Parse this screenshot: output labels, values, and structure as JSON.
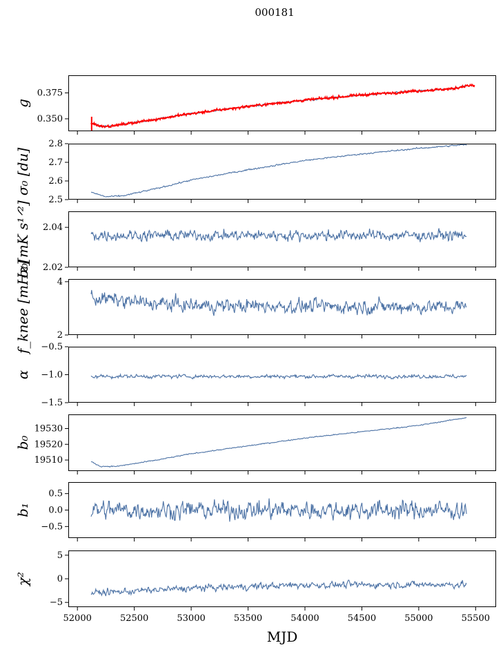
{
  "chart_data": {
    "type": "line",
    "title": "000181",
    "xlabel": "MJD",
    "x_range": [
      51920,
      55680
    ],
    "x_ticks": [
      52000,
      52500,
      53000,
      53500,
      54000,
      54500,
      55000,
      55500
    ],
    "x_tick_labels": [
      "52000",
      "52500",
      "53000",
      "53500",
      "54000",
      "54500",
      "55000",
      "55500"
    ],
    "data_x_range": [
      52120,
      55420
    ],
    "colors": {
      "series": "#4c72a5",
      "overlay": "#ff0000"
    },
    "panels": [
      {
        "id": "g",
        "ylabel": "g",
        "ylim": [
          0.338,
          0.392
        ],
        "yticks": [
          0.35,
          0.375
        ],
        "ytick_labels": [
          "0.350",
          "0.375"
        ],
        "trend": [
          [
            52120,
            0.346
          ],
          [
            52200,
            0.343
          ],
          [
            52300,
            0.343
          ],
          [
            52600,
            0.348
          ],
          [
            53000,
            0.355
          ],
          [
            53500,
            0.362
          ],
          [
            54000,
            0.368
          ],
          [
            54500,
            0.373
          ],
          [
            55000,
            0.377
          ],
          [
            55300,
            0.379
          ],
          [
            55420,
            0.382
          ]
        ],
        "noise": 0.0008,
        "overlay": {
          "color": "#ff0000",
          "x_end": 55490,
          "noise": 0.0012
        }
      },
      {
        "id": "sigma0-du",
        "ylabel": "σ₀ [du]",
        "ylim": [
          2.5,
          2.8
        ],
        "yticks": [
          2.5,
          2.6,
          2.7,
          2.8
        ],
        "ytick_labels": [
          "2.5",
          "2.6",
          "2.7",
          "2.8"
        ],
        "trend": [
          [
            52120,
            2.54
          ],
          [
            52250,
            2.515
          ],
          [
            52400,
            2.52
          ],
          [
            52700,
            2.56
          ],
          [
            53000,
            2.605
          ],
          [
            53500,
            2.66
          ],
          [
            54000,
            2.71
          ],
          [
            54500,
            2.745
          ],
          [
            55000,
            2.775
          ],
          [
            55420,
            2.795
          ]
        ],
        "noise": 0.004
      },
      {
        "id": "sigma0-mk",
        "ylabel": "σ₀[mK s¹ᐟ²]",
        "ylim": [
          2.02,
          2.048
        ],
        "yticks": [
          2.02,
          2.04
        ],
        "ytick_labels": [
          "2.02",
          "2.04"
        ],
        "trend": [
          [
            52120,
            2.036
          ],
          [
            55420,
            2.036
          ]
        ],
        "noise": 0.0028
      },
      {
        "id": "fknee",
        "ylabel": "f_knee [mHz]",
        "ylim": [
          2.0,
          4.1
        ],
        "yticks": [
          2,
          4
        ],
        "ytick_labels": [
          "2",
          "4"
        ],
        "trend": [
          [
            52120,
            3.4
          ],
          [
            52600,
            3.2
          ],
          [
            53000,
            3.1
          ],
          [
            55420,
            3.05
          ]
        ],
        "noise": 0.28
      },
      {
        "id": "alpha",
        "ylabel": "α",
        "ylim": [
          -1.5,
          -0.5
        ],
        "yticks": [
          -1.5,
          -1.0,
          -0.5
        ],
        "ytick_labels": [
          "−1.5",
          "−1.0",
          "−0.5"
        ],
        "trend": [
          [
            52120,
            -1.03
          ],
          [
            55420,
            -1.03
          ]
        ],
        "noise": 0.035
      },
      {
        "id": "b0",
        "ylabel": "b₀",
        "ylim": [
          19503,
          19539
        ],
        "yticks": [
          19510,
          19520,
          19530
        ],
        "ytick_labels": [
          "19510",
          "19520",
          "19530"
        ],
        "trend": [
          [
            52120,
            19509
          ],
          [
            52200,
            19506
          ],
          [
            52350,
            19506
          ],
          [
            52700,
            19510
          ],
          [
            53000,
            19514
          ],
          [
            53500,
            19519
          ],
          [
            54000,
            19524
          ],
          [
            54500,
            19528
          ],
          [
            55000,
            19532
          ],
          [
            55420,
            19537
          ]
        ],
        "noise": 0.35
      },
      {
        "id": "b1",
        "ylabel": "b₁",
        "ylim": [
          -0.85,
          0.85
        ],
        "yticks": [
          -0.5,
          0.0,
          0.5
        ],
        "ytick_labels": [
          "−0.5",
          "0.0",
          "0.5"
        ],
        "trend": [
          [
            52120,
            0.0
          ],
          [
            55420,
            0.0
          ]
        ],
        "noise": 0.3
      },
      {
        "id": "chi2",
        "ylabel": "χ²",
        "ylim": [
          -6,
          6
        ],
        "yticks": [
          -5,
          0,
          5
        ],
        "ytick_labels": [
          "−5",
          "0",
          "5"
        ],
        "trend": [
          [
            52120,
            -3.0
          ],
          [
            52500,
            -2.6
          ],
          [
            53000,
            -2.0
          ],
          [
            54000,
            -1.3
          ],
          [
            55420,
            -1.2
          ]
        ],
        "noise": 0.75
      }
    ]
  }
}
